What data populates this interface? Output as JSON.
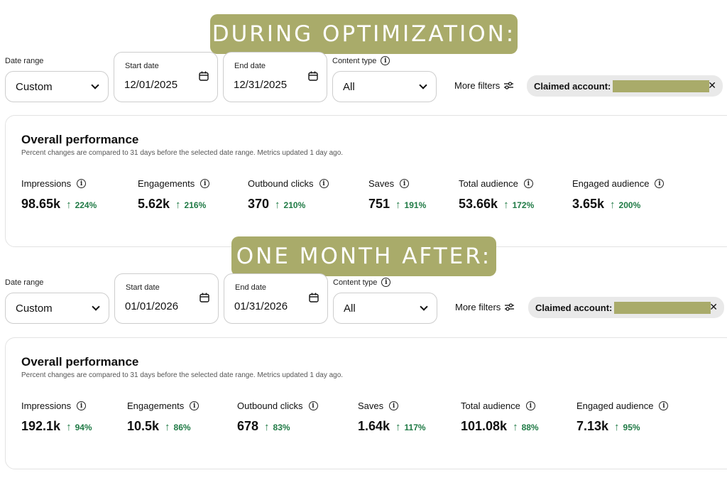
{
  "banners": {
    "top": "DURING OPTIMIZATION:",
    "bottom": "ONE MONTH AFTER:"
  },
  "colors": {
    "accent": "#a9ab6a",
    "positive": "#1f7a45"
  },
  "before": {
    "filters": {
      "date_range_label": "Date range",
      "date_range_value": "Custom",
      "start_date_label": "Start date",
      "start_date_value": "12/01/2025",
      "end_date_label": "End date",
      "end_date_value": "12/31/2025",
      "content_type_label": "Content type",
      "content_type_value": "All",
      "more_filters": "More filters",
      "chip_label": "Claimed account:"
    },
    "performance": {
      "title": "Overall performance",
      "subtitle": "Percent changes are compared to 31 days before the selected date range. Metrics updated 1 day ago.",
      "metrics": [
        {
          "label": "Impressions",
          "value": "98.65k",
          "change": "224%"
        },
        {
          "label": "Engagements",
          "value": "5.62k",
          "change": "216%"
        },
        {
          "label": "Outbound clicks",
          "value": "370",
          "change": "210%"
        },
        {
          "label": "Saves",
          "value": "751",
          "change": "191%"
        },
        {
          "label": "Total audience",
          "value": "53.66k",
          "change": "172%"
        },
        {
          "label": "Engaged audience",
          "value": "3.65k",
          "change": "200%"
        }
      ]
    }
  },
  "after": {
    "filters": {
      "date_range_label": "Date range",
      "date_range_value": "Custom",
      "start_date_label": "Start date",
      "start_date_value": "01/01/2026",
      "end_date_label": "End date",
      "end_date_value": "01/31/2026",
      "content_type_label": "Content type",
      "content_type_value": "All",
      "more_filters": "More filters",
      "chip_label": "Claimed account:"
    },
    "performance": {
      "title": "Overall performance",
      "subtitle": "Percent changes are compared to 31 days before the selected date range. Metrics updated 1 day ago.",
      "metrics": [
        {
          "label": "Impressions",
          "value": "192.1k",
          "change": "94%"
        },
        {
          "label": "Engagements",
          "value": "10.5k",
          "change": "86%"
        },
        {
          "label": "Outbound clicks",
          "value": "678",
          "change": "83%"
        },
        {
          "label": "Saves",
          "value": "1.64k",
          "change": "117%"
        },
        {
          "label": "Total audience",
          "value": "101.08k",
          "change": "88%"
        },
        {
          "label": "Engaged audience",
          "value": "7.13k",
          "change": "95%"
        }
      ]
    }
  }
}
